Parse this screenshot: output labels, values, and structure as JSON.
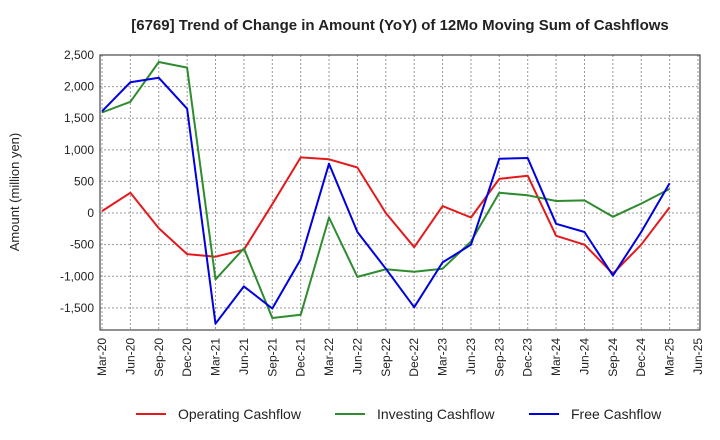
{
  "chart_data": {
    "type": "line",
    "title": "[6769]  Trend of Change in Amount (YoY) of 12Mo Moving Sum of Cashflows",
    "ylabel": "Amount (million yen)",
    "xlabel": "",
    "ylim": [
      -1850,
      2500
    ],
    "yticks": [
      2500,
      2000,
      1500,
      1000,
      500,
      0,
      -500,
      -1000,
      -1500
    ],
    "ytick_labels": [
      "2,500",
      "2,000",
      "1,500",
      "1,000",
      "500",
      "0",
      "-500",
      "-1,000",
      "-1,500"
    ],
    "categories": [
      "Mar-20",
      "Jun-20",
      "Sep-20",
      "Dec-20",
      "Mar-21",
      "Jun-21",
      "Sep-21",
      "Dec-21",
      "Mar-22",
      "Jun-22",
      "Sep-22",
      "Dec-22",
      "Mar-23",
      "Jun-23",
      "Sep-23",
      "Dec-23",
      "Mar-24",
      "Jun-24",
      "Sep-24",
      "Dec-24",
      "Mar-25",
      "Jun-25"
    ],
    "grid": true,
    "legend_position": "bottom",
    "series": [
      {
        "name": "Operating Cashflow",
        "color": "#e31a1c",
        "values": [
          30,
          320,
          -240,
          -650,
          -690,
          -580,
          140,
          880,
          850,
          720,
          0,
          -540,
          110,
          -70,
          540,
          590,
          -360,
          -500,
          -960,
          -500,
          90,
          null
        ]
      },
      {
        "name": "Investing Cashflow",
        "color": "#2e8b2e",
        "values": [
          1590,
          1760,
          2390,
          2300,
          -1050,
          -560,
          -1660,
          -1610,
          -70,
          -1010,
          -890,
          -930,
          -880,
          -450,
          320,
          280,
          190,
          200,
          -60,
          150,
          380,
          null
        ]
      },
      {
        "name": "Free Cashflow",
        "color": "#0000e0",
        "values": [
          1610,
          2070,
          2140,
          1650,
          -1750,
          -1160,
          -1510,
          -730,
          780,
          -300,
          -880,
          -1490,
          -780,
          -500,
          860,
          870,
          -170,
          -300,
          -990,
          -300,
          470,
          null
        ]
      }
    ]
  }
}
